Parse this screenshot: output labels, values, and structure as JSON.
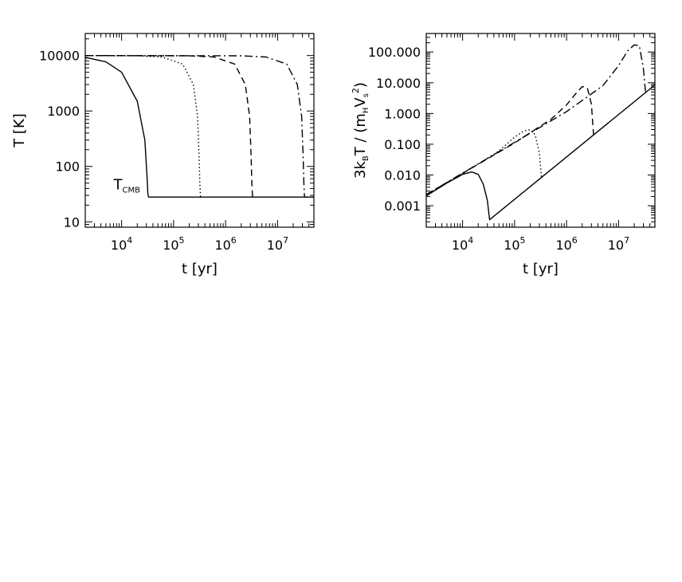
{
  "chart_data": [
    {
      "type": "line",
      "id": "left",
      "title": "",
      "xlabel": "t [yr]",
      "ylabel": "T [K]",
      "xscale": "log",
      "yscale": "log",
      "xlim": [
        2000,
        50000000
      ],
      "ylim": [
        8,
        25000
      ],
      "x_ticks": [
        {
          "value": 10000,
          "base": "10",
          "exp": "4"
        },
        {
          "value": 100000,
          "base": "10",
          "exp": "5"
        },
        {
          "value": 1000000,
          "base": "10",
          "exp": "6"
        },
        {
          "value": 10000000,
          "base": "10",
          "exp": "7"
        }
      ],
      "y_ticks": [
        {
          "value": 10,
          "label": "10"
        },
        {
          "value": 100,
          "label": "100"
        },
        {
          "value": 1000,
          "label": "1000"
        },
        {
          "value": 10000,
          "label": "10000"
        }
      ],
      "annotation": {
        "text": "T",
        "sub": "CMB",
        "x": 3000,
        "y": 34
      },
      "grid": false,
      "series": [
        {
          "style": "solid",
          "x": [
            2000,
            5000,
            10000,
            20000,
            28000,
            31000,
            32000,
            33000,
            50000000
          ],
          "y": [
            9300,
            7700,
            5000,
            1500,
            300,
            60,
            32,
            28,
            28
          ]
        },
        {
          "style": "dotted",
          "x": [
            2000,
            20000,
            60000,
            150000,
            240000,
            290000,
            310000,
            320000,
            330000
          ],
          "y": [
            10000,
            9900,
            9400,
            7000,
            3000,
            800,
            150,
            50,
            28
          ]
        },
        {
          "style": "dashed",
          "x": [
            2000,
            200000,
            600000,
            1500000,
            2400000,
            2900000,
            3100000,
            3200000,
            3300000
          ],
          "y": [
            10000,
            9900,
            9400,
            7000,
            3000,
            800,
            150,
            50,
            28
          ]
        },
        {
          "style": "dashdot",
          "x": [
            2000,
            2000000,
            6000000,
            15000000,
            24000000,
            29000000,
            31000000,
            32000000,
            33000000,
            50000000
          ],
          "y": [
            10000,
            9900,
            9400,
            7000,
            3000,
            800,
            150,
            50,
            28,
            28
          ]
        }
      ]
    },
    {
      "type": "line",
      "id": "right",
      "title": "",
      "xlabel": "t [yr]",
      "ylabel": "3k_BT / (m_HV_s^2)",
      "ylabel_parts": {
        "a": "3k",
        "b": "B",
        "c": "T  /  (m",
        "d": "H",
        "e": "V",
        "f": "s",
        "g": "2",
        "h": ")"
      },
      "xscale": "log",
      "yscale": "log",
      "xlim": [
        2000,
        50000000
      ],
      "ylim": [
        0.0002,
        400
      ],
      "x_ticks": [
        {
          "value": 10000,
          "base": "10",
          "exp": "4"
        },
        {
          "value": 100000,
          "base": "10",
          "exp": "5"
        },
        {
          "value": 1000000,
          "base": "10",
          "exp": "6"
        },
        {
          "value": 10000000,
          "base": "10",
          "exp": "7"
        }
      ],
      "y_ticks": [
        {
          "value": 0.001,
          "label": "0.001"
        },
        {
          "value": 0.01,
          "label": "0.010"
        },
        {
          "value": 0.1,
          "label": "0.100"
        },
        {
          "value": 1,
          "label": "1.000"
        },
        {
          "value": 10,
          "label": "10.000"
        },
        {
          "value": 100,
          "label": "100.000"
        }
      ],
      "grid": false,
      "series": [
        {
          "style": "solid",
          "x": [
            2000,
            5000,
            10000,
            15000,
            20000,
            25000,
            30000,
            33000,
            50000000
          ],
          "y": [
            0.0021,
            0.0055,
            0.0105,
            0.0125,
            0.0105,
            0.005,
            0.0015,
            0.00035,
            8.5
          ]
        },
        {
          "style": "dotted",
          "x": [
            2000,
            10000,
            50000,
            100000,
            150000,
            200000,
            250000,
            300000,
            330000
          ],
          "y": [
            0.0022,
            0.011,
            0.06,
            0.17,
            0.27,
            0.3,
            0.2,
            0.05,
            0.008
          ]
        },
        {
          "style": "dashed",
          "x": [
            2000,
            100000,
            500000,
            1000000,
            1500000,
            2000000,
            2500000,
            3000000,
            3300000
          ],
          "y": [
            0.0023,
            0.11,
            0.65,
            1.9,
            4.4,
            7.5,
            7.0,
            2.0,
            0.2
          ]
        },
        {
          "style": "dashdot",
          "x": [
            2000,
            1000000,
            5000000,
            10000000,
            15000000,
            20000000,
            25000000,
            30000000,
            33000000
          ],
          "y": [
            0.0023,
            1.15,
            8.0,
            36,
            110,
            170,
            160,
            30,
            5
          ]
        }
      ]
    }
  ]
}
